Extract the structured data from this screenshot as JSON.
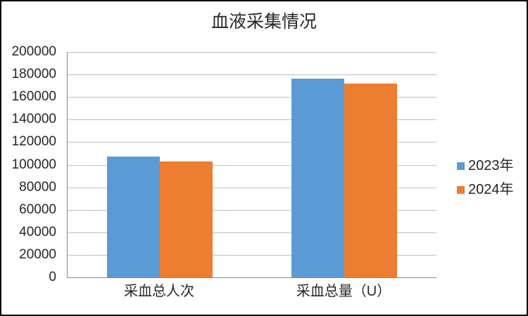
{
  "chart_data": {
    "type": "bar",
    "title": "血液采集情况",
    "categories": [
      "采血总人次",
      "采血总量（U）"
    ],
    "series": [
      {
        "name": "2023年",
        "color": "#5B9BD5",
        "values": [
          107000,
          176500
        ]
      },
      {
        "name": "2024年",
        "color": "#ED7D31",
        "values": [
          103000,
          172000
        ]
      }
    ],
    "ylim": [
      0,
      200000
    ],
    "ytick_step": 20000,
    "ytick_labels": [
      "0",
      "20000",
      "40000",
      "60000",
      "80000",
      "100000",
      "120000",
      "140000",
      "160000",
      "180000",
      "200000"
    ],
    "xlabel": "",
    "ylabel": "",
    "grid": "horizontal-major",
    "legend_position": "right"
  },
  "styles": {
    "series_2023_color": "#5B9BD5",
    "series_2024_color": "#ED7D31",
    "gridline_color": "#BFBFBF",
    "axis_line_color": "#898989",
    "text_color": "#262626",
    "background_color": "#FFFFFF",
    "frame_border_color": "#000000"
  }
}
